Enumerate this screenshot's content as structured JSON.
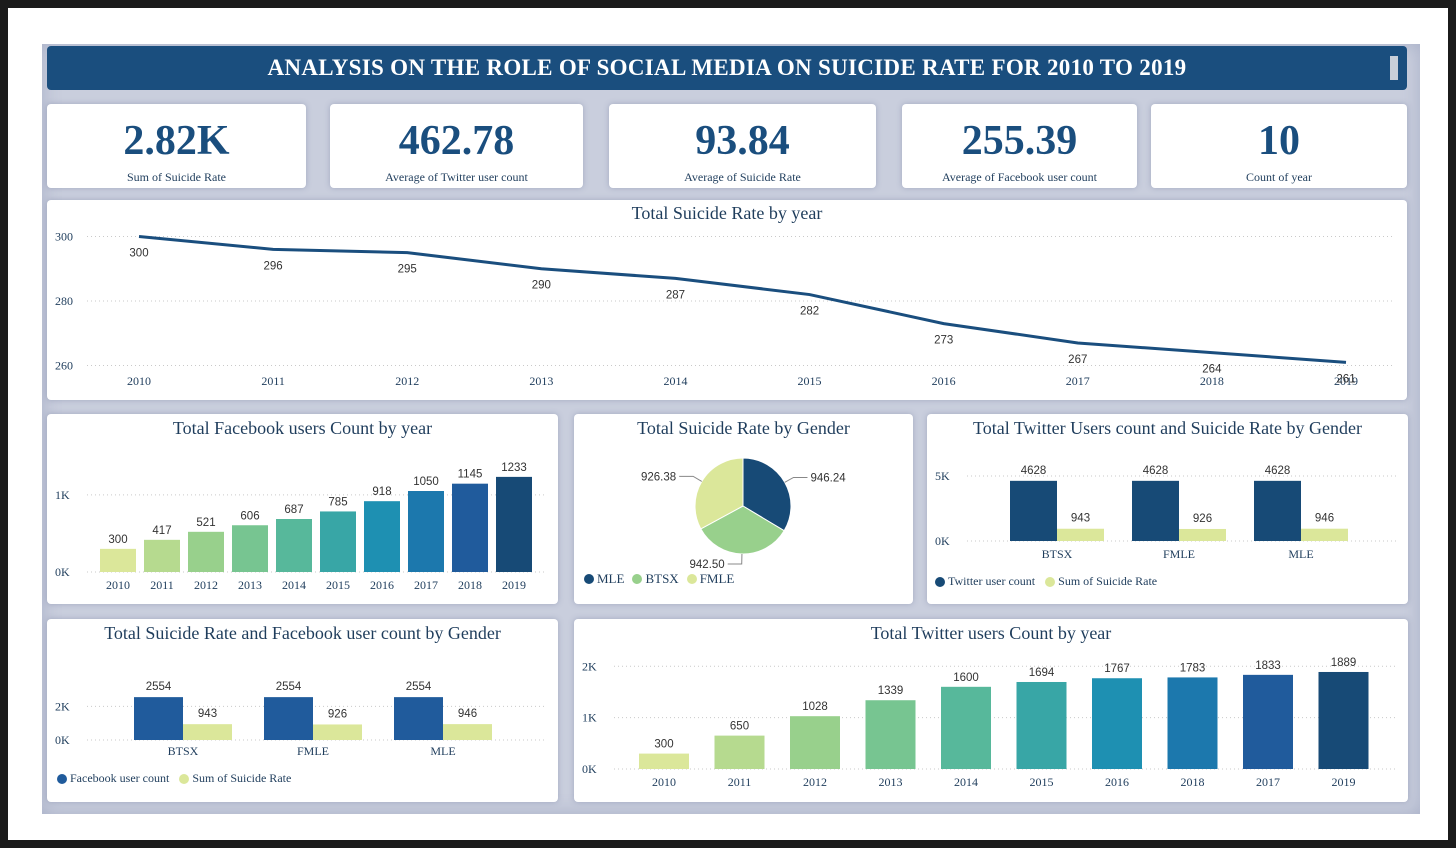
{
  "title": "ANALYSIS ON THE ROLE OF SOCIAL MEDIA ON SUICIDE RATE FOR 2010 TO 2019",
  "kpis": [
    {
      "value": "2.82K",
      "label": "Sum of Suicide Rate"
    },
    {
      "value": "462.78",
      "label": "Average of Twitter user count"
    },
    {
      "value": "93.84",
      "label": "Average of Suicide Rate"
    },
    {
      "value": "255.39",
      "label": "Average of Facebook user count"
    },
    {
      "value": "10",
      "label": "Count of year"
    }
  ],
  "colors": {
    "primary": "#1a4e7e",
    "light": "#dbe79a",
    "year_palette": [
      "#dbe79a",
      "#b6da8f",
      "#98d08c",
      "#77c591",
      "#57b89b",
      "#38a6a6",
      "#1e90b2",
      "#1c78ad",
      "#205b9c",
      "#174a76"
    ]
  },
  "chart_data": [
    {
      "type": "line",
      "title": "Total Suicide Rate by year",
      "x": [
        "2010",
        "2011",
        "2012",
        "2013",
        "2014",
        "2015",
        "2016",
        "2017",
        "2018",
        "2019"
      ],
      "series": [
        {
          "values": [
            300,
            296,
            295,
            290,
            287,
            282,
            273,
            267,
            264,
            261
          ]
        }
      ],
      "yticks": [
        "260",
        "280",
        "300"
      ],
      "ylim": [
        258,
        302
      ],
      "grid": true
    },
    {
      "type": "bar",
      "title": "Total Facebook users Count by year",
      "categories": [
        "2010",
        "2011",
        "2012",
        "2013",
        "2014",
        "2015",
        "2016",
        "2017",
        "2018",
        "2019"
      ],
      "values": [
        300,
        417,
        521,
        606,
        687,
        785,
        918,
        1050,
        1145,
        1233
      ],
      "yticks": [
        "0K",
        "1K"
      ],
      "ylim": [
        0,
        1400
      ],
      "grid": true
    },
    {
      "type": "pie",
      "title": "Total Suicide Rate by Gender",
      "slices": [
        {
          "name": "MLE",
          "value": 946.24,
          "label": "946.24",
          "color": "#174a76"
        },
        {
          "name": "BTSX",
          "value": 942.5,
          "label": "942.50",
          "color": "#98d08c"
        },
        {
          "name": "FMLE",
          "value": 926.38,
          "label": "926.38",
          "color": "#dbe79a"
        }
      ],
      "legend": "bottom-left"
    },
    {
      "type": "bar",
      "title": "Total Twitter Users count and Suicide Rate by Gender",
      "categories": [
        "BTSX",
        "FMLE",
        "MLE"
      ],
      "series": [
        {
          "name": "Twitter user count",
          "values": [
            4628,
            4628,
            4628
          ],
          "color": "#174a76"
        },
        {
          "name": "Sum of Suicide Rate",
          "values": [
            943,
            926,
            946
          ],
          "color": "#dbe79a"
        }
      ],
      "yticks": [
        "0K",
        "5K"
      ],
      "ylim": [
        0,
        5000
      ],
      "legend": "bottom-left",
      "grid": true
    },
    {
      "type": "bar",
      "title": "Total Suicide Rate and Facebook user count by Gender",
      "categories": [
        "BTSX",
        "FMLE",
        "MLE"
      ],
      "series": [
        {
          "name": "Facebook user count",
          "values": [
            2554,
            2554,
            2554
          ],
          "color": "#205b9c"
        },
        {
          "name": "Sum of Suicide Rate",
          "values": [
            943,
            926,
            946
          ],
          "color": "#dbe79a"
        }
      ],
      "yticks": [
        "0K",
        "2K"
      ],
      "ylim": [
        0,
        2800
      ],
      "legend": "bottom-left",
      "grid": true
    },
    {
      "type": "bar",
      "title": "Total Twitter users Count by year",
      "categories": [
        "2010",
        "2011",
        "2012",
        "2013",
        "2014",
        "2015",
        "2016",
        "2018",
        "2017",
        "2019"
      ],
      "values": [
        300,
        650,
        1028,
        1339,
        1600,
        1694,
        1767,
        1783,
        1833,
        1889
      ],
      "yticks": [
        "0K",
        "1K",
        "2K"
      ],
      "ylim": [
        0,
        2200
      ],
      "grid": true
    }
  ]
}
